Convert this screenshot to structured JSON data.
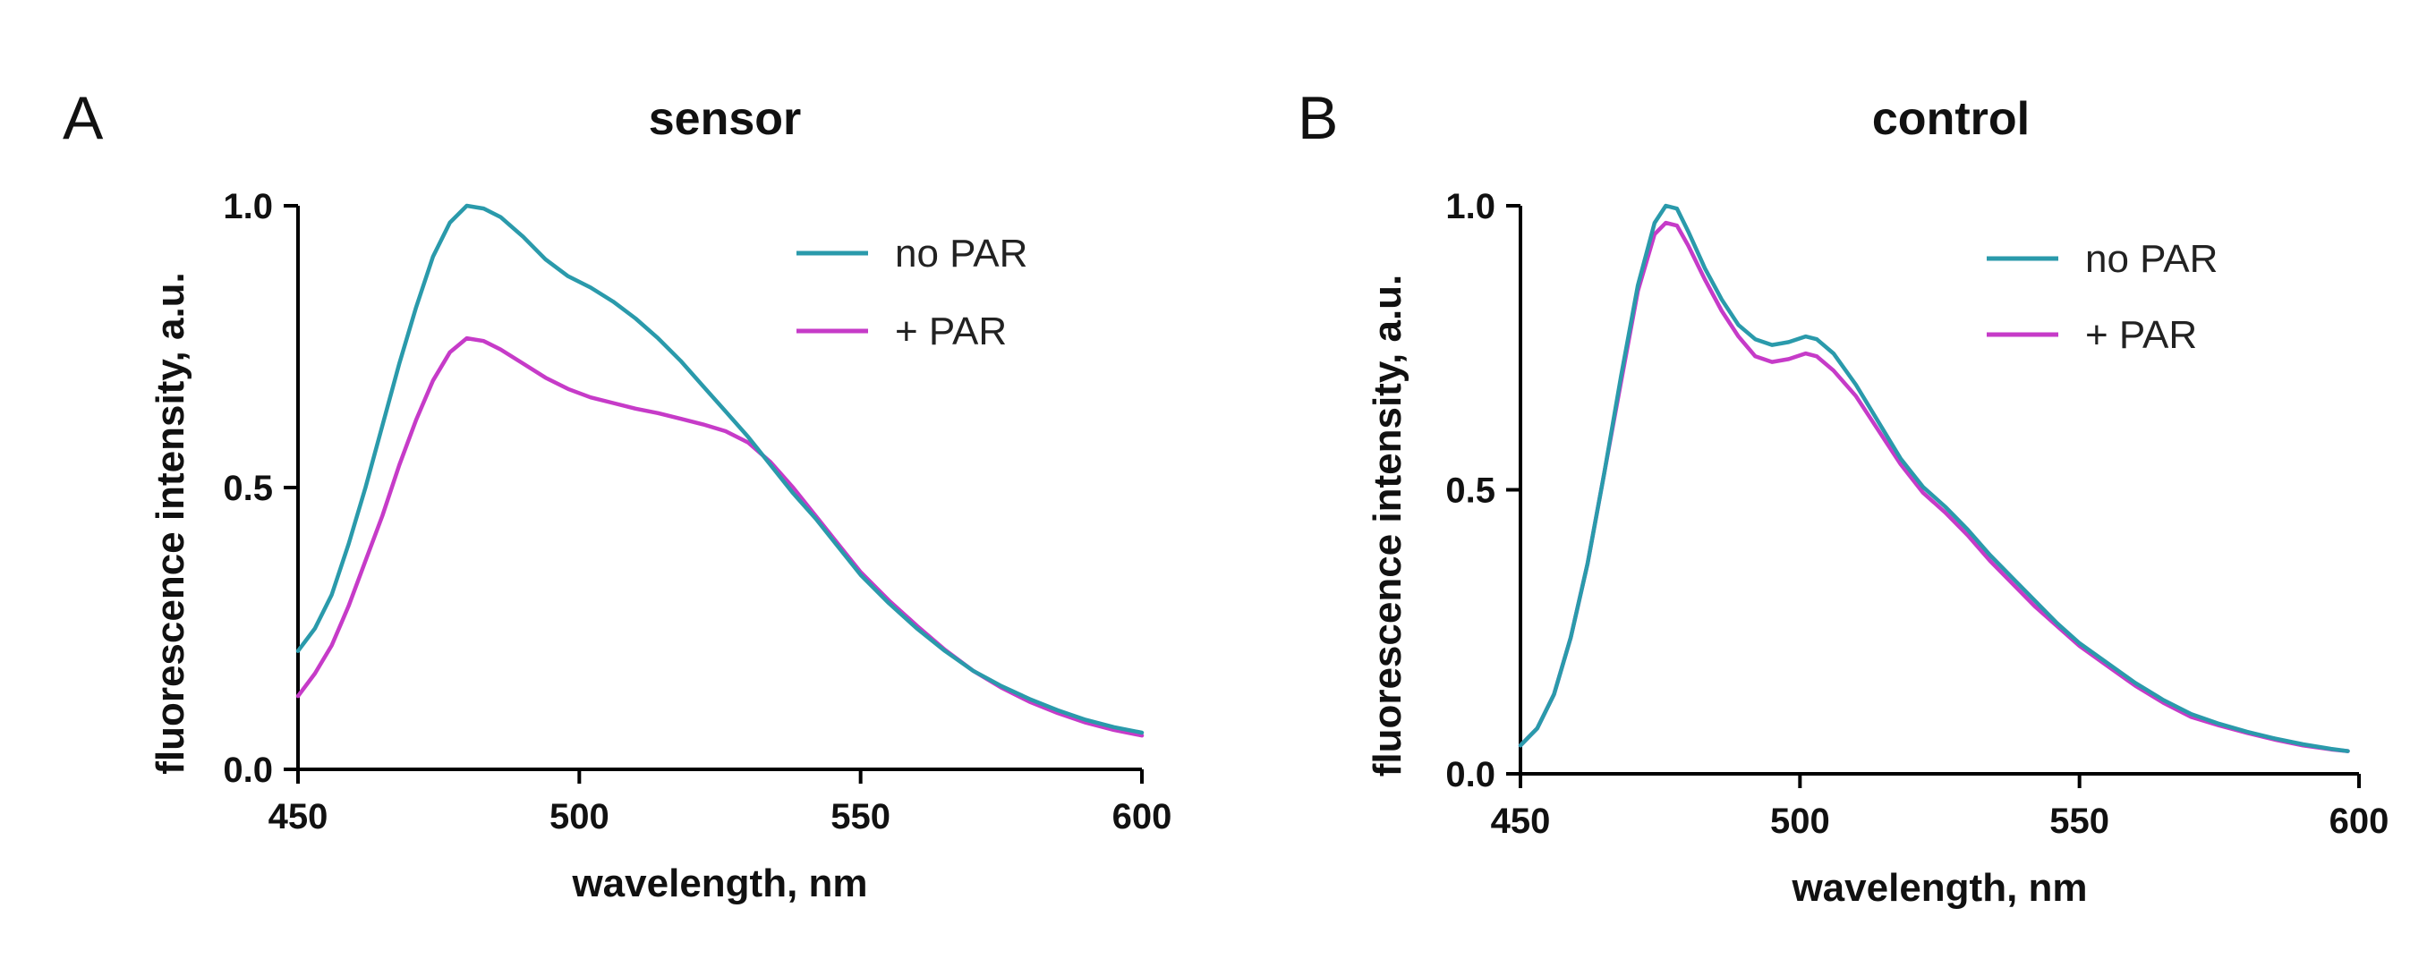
{
  "figure": {
    "panels": [
      "A",
      "B"
    ]
  },
  "colors": {
    "no_par": "#2a9aab",
    "plus_par": "#c63bc8"
  },
  "chart_data": [
    {
      "type": "line",
      "panel": "A",
      "title": "sensor",
      "xlabel": "wavelength, nm",
      "ylabel": "fluorescence intensity, a.u.",
      "xlim": [
        450,
        600
      ],
      "ylim": [
        0,
        1.0
      ],
      "xticks": [
        450,
        500,
        550,
        600
      ],
      "xtick_labels": [
        "450",
        "500",
        "550",
        "600"
      ],
      "yticks": [
        0,
        0.5,
        1.0
      ],
      "ytick_labels": [
        "0.0",
        "0.5",
        "1.0"
      ],
      "legend_position": "top-right",
      "series": [
        {
          "name": "no PAR",
          "color": "#2a9aab",
          "points": [
            [
              450,
              0.21
            ],
            [
              453,
              0.25
            ],
            [
              456,
              0.31
            ],
            [
              459,
              0.4
            ],
            [
              462,
              0.5
            ],
            [
              465,
              0.61
            ],
            [
              468,
              0.72
            ],
            [
              471,
              0.82
            ],
            [
              474,
              0.91
            ],
            [
              477,
              0.97
            ],
            [
              480,
              1.0
            ],
            [
              483,
              0.995
            ],
            [
              486,
              0.98
            ],
            [
              490,
              0.945
            ],
            [
              494,
              0.905
            ],
            [
              498,
              0.875
            ],
            [
              502,
              0.855
            ],
            [
              506,
              0.83
            ],
            [
              510,
              0.8
            ],
            [
              514,
              0.765
            ],
            [
              518,
              0.725
            ],
            [
              522,
              0.68
            ],
            [
              526,
              0.635
            ],
            [
              530,
              0.59
            ],
            [
              534,
              0.54
            ],
            [
              538,
              0.49
            ],
            [
              542,
              0.445
            ],
            [
              546,
              0.395
            ],
            [
              550,
              0.345
            ],
            [
              555,
              0.295
            ],
            [
              560,
              0.25
            ],
            [
              565,
              0.21
            ],
            [
              570,
              0.175
            ],
            [
              575,
              0.148
            ],
            [
              580,
              0.125
            ],
            [
              585,
              0.105
            ],
            [
              590,
              0.088
            ],
            [
              595,
              0.075
            ],
            [
              600,
              0.065
            ]
          ]
        },
        {
          "name": "+ PAR",
          "color": "#c63bc8",
          "points": [
            [
              450,
              0.13
            ],
            [
              453,
              0.17
            ],
            [
              456,
              0.22
            ],
            [
              459,
              0.29
            ],
            [
              462,
              0.37
            ],
            [
              465,
              0.45
            ],
            [
              468,
              0.54
            ],
            [
              471,
              0.62
            ],
            [
              474,
              0.69
            ],
            [
              477,
              0.74
            ],
            [
              480,
              0.765
            ],
            [
              483,
              0.76
            ],
            [
              486,
              0.745
            ],
            [
              490,
              0.72
            ],
            [
              494,
              0.695
            ],
            [
              498,
              0.675
            ],
            [
              502,
              0.66
            ],
            [
              506,
              0.65
            ],
            [
              510,
              0.64
            ],
            [
              514,
              0.632
            ],
            [
              518,
              0.622
            ],
            [
              522,
              0.612
            ],
            [
              526,
              0.6
            ],
            [
              530,
              0.58
            ],
            [
              534,
              0.545
            ],
            [
              538,
              0.5
            ],
            [
              542,
              0.45
            ],
            [
              546,
              0.4
            ],
            [
              550,
              0.35
            ],
            [
              555,
              0.3
            ],
            [
              560,
              0.255
            ],
            [
              565,
              0.212
            ],
            [
              570,
              0.175
            ],
            [
              575,
              0.145
            ],
            [
              580,
              0.12
            ],
            [
              585,
              0.1
            ],
            [
              590,
              0.083
            ],
            [
              595,
              0.07
            ],
            [
              600,
              0.06
            ]
          ]
        }
      ]
    },
    {
      "type": "line",
      "panel": "B",
      "title": "control",
      "xlabel": "wavelength, nm",
      "ylabel": "fluorescence intensity, a.u.",
      "xlim": [
        450,
        600
      ],
      "ylim": [
        0,
        1.0
      ],
      "xticks": [
        450,
        500,
        550,
        600
      ],
      "xtick_labels": [
        "450",
        "500",
        "550",
        "600"
      ],
      "yticks": [
        0,
        0.5,
        1.0
      ],
      "ytick_labels": [
        "0.0",
        "0.5",
        "1.0"
      ],
      "legend_position": "top-right",
      "series": [
        {
          "name": "no PAR",
          "color": "#2a9aab",
          "points": [
            [
              450,
              0.05
            ],
            [
              453,
              0.08
            ],
            [
              456,
              0.14
            ],
            [
              459,
              0.24
            ],
            [
              462,
              0.37
            ],
            [
              465,
              0.53
            ],
            [
              468,
              0.7
            ],
            [
              471,
              0.86
            ],
            [
              474,
              0.97
            ],
            [
              476,
              1.0
            ],
            [
              478,
              0.995
            ],
            [
              480,
              0.955
            ],
            [
              483,
              0.89
            ],
            [
              486,
              0.835
            ],
            [
              489,
              0.79
            ],
            [
              492,
              0.765
            ],
            [
              495,
              0.755
            ],
            [
              498,
              0.76
            ],
            [
              501,
              0.77
            ],
            [
              503,
              0.765
            ],
            [
              506,
              0.74
            ],
            [
              510,
              0.685
            ],
            [
              514,
              0.62
            ],
            [
              518,
              0.555
            ],
            [
              522,
              0.505
            ],
            [
              526,
              0.47
            ],
            [
              530,
              0.43
            ],
            [
              534,
              0.385
            ],
            [
              538,
              0.345
            ],
            [
              542,
              0.305
            ],
            [
              546,
              0.265
            ],
            [
              550,
              0.23
            ],
            [
              555,
              0.195
            ],
            [
              560,
              0.16
            ],
            [
              565,
              0.13
            ],
            [
              570,
              0.105
            ],
            [
              575,
              0.088
            ],
            [
              580,
              0.074
            ],
            [
              585,
              0.062
            ],
            [
              590,
              0.052
            ],
            [
              595,
              0.044
            ],
            [
              598,
              0.04
            ]
          ]
        },
        {
          "name": "+ PAR",
          "color": "#c63bc8",
          "points": [
            [
              450,
              0.05
            ],
            [
              453,
              0.08
            ],
            [
              456,
              0.14
            ],
            [
              459,
              0.24
            ],
            [
              462,
              0.37
            ],
            [
              465,
              0.53
            ],
            [
              468,
              0.69
            ],
            [
              471,
              0.85
            ],
            [
              474,
              0.95
            ],
            [
              476,
              0.97
            ],
            [
              478,
              0.965
            ],
            [
              480,
              0.93
            ],
            [
              483,
              0.87
            ],
            [
              486,
              0.815
            ],
            [
              489,
              0.77
            ],
            [
              492,
              0.735
            ],
            [
              495,
              0.725
            ],
            [
              498,
              0.73
            ],
            [
              501,
              0.74
            ],
            [
              503,
              0.735
            ],
            [
              506,
              0.71
            ],
            [
              510,
              0.665
            ],
            [
              514,
              0.605
            ],
            [
              518,
              0.545
            ],
            [
              522,
              0.495
            ],
            [
              526,
              0.46
            ],
            [
              530,
              0.42
            ],
            [
              534,
              0.375
            ],
            [
              538,
              0.335
            ],
            [
              542,
              0.295
            ],
            [
              546,
              0.26
            ],
            [
              550,
              0.225
            ],
            [
              555,
              0.19
            ],
            [
              560,
              0.155
            ],
            [
              565,
              0.125
            ],
            [
              570,
              0.1
            ],
            [
              575,
              0.085
            ],
            [
              580,
              0.072
            ],
            [
              585,
              0.06
            ],
            [
              590,
              0.05
            ],
            [
              595,
              0.043
            ],
            [
              598,
              0.04
            ]
          ]
        }
      ]
    }
  ]
}
